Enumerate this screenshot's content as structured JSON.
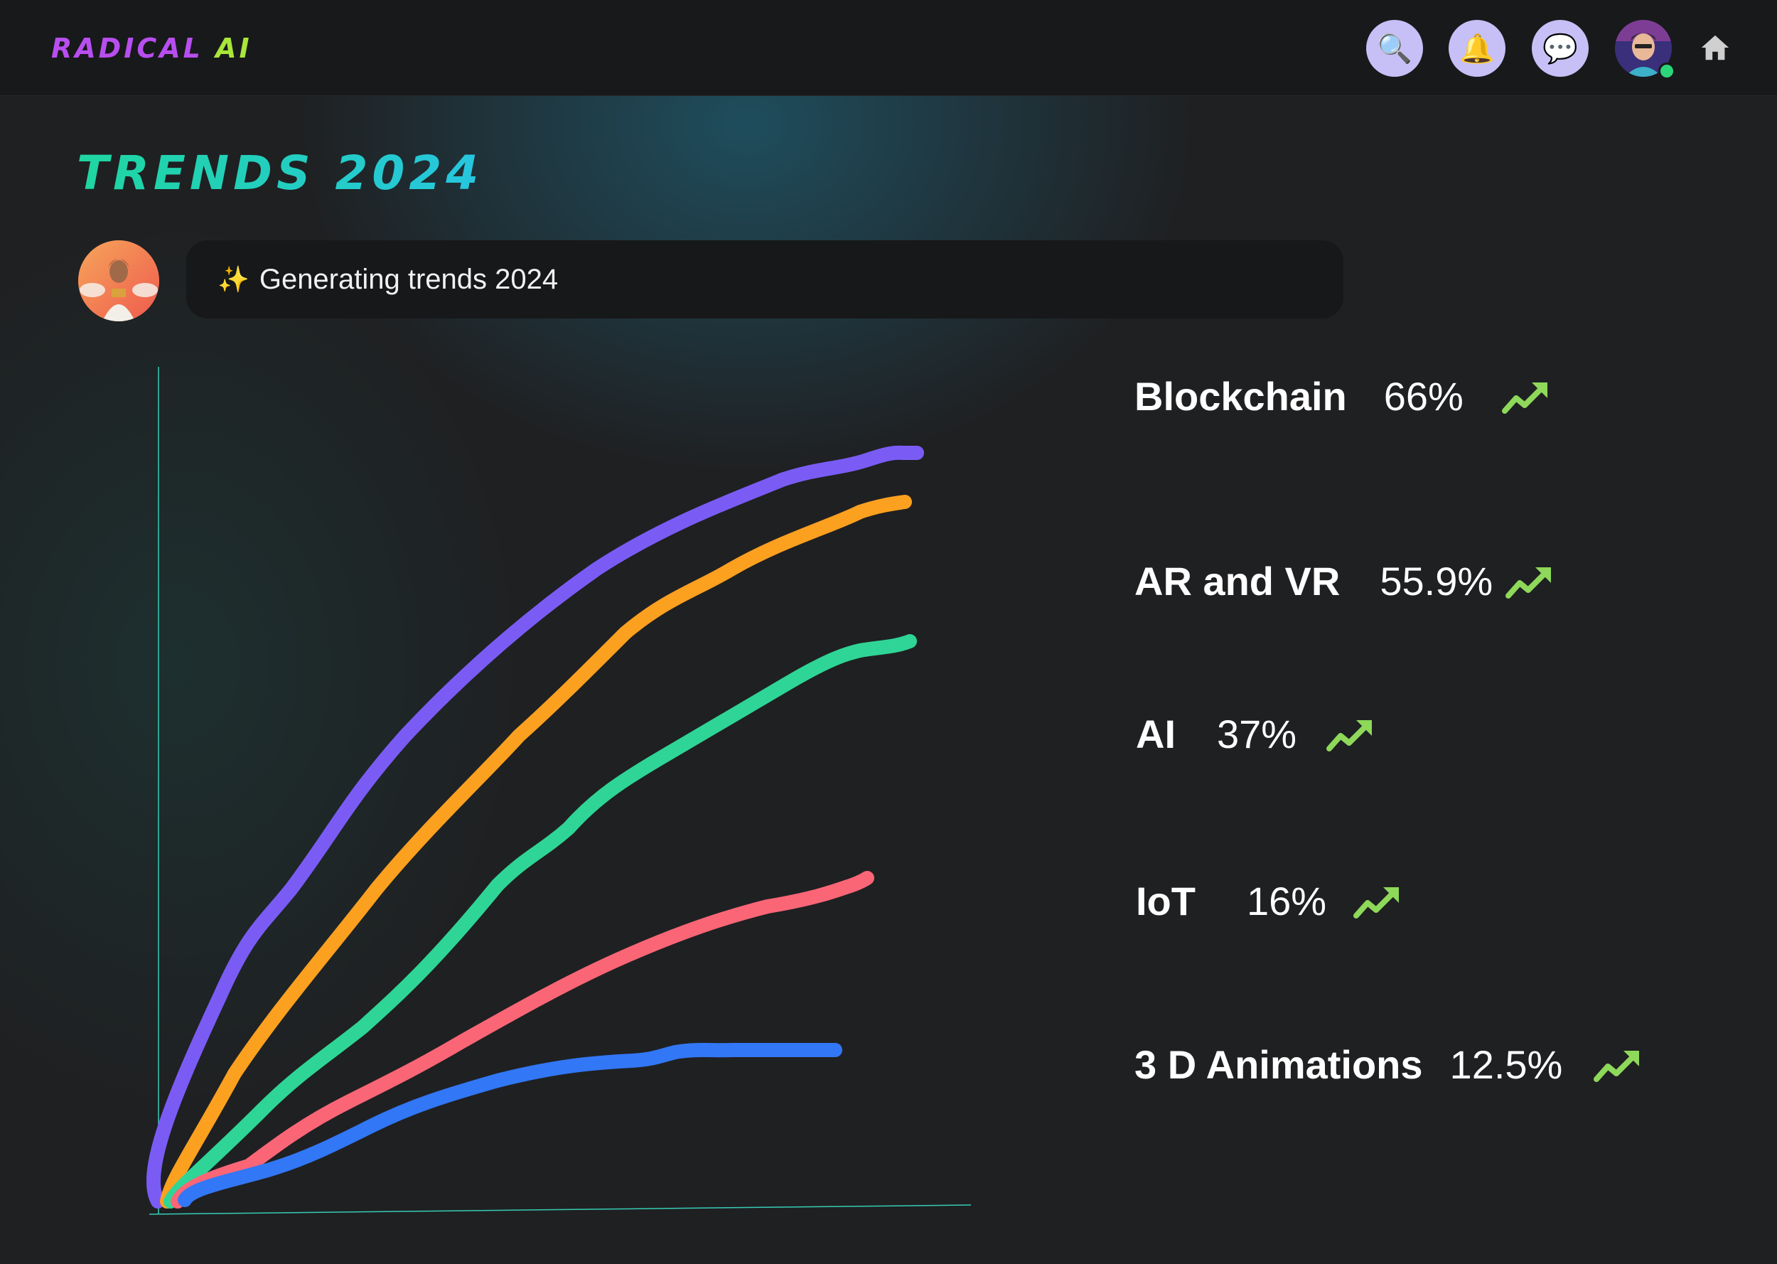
{
  "app": {
    "logo_part1": "RADICAL",
    "logo_part2": "AI",
    "title": "TRENDS 2024"
  },
  "nav": {
    "search_icon": "🔍",
    "bell_icon": "🔔",
    "chat_icon": "💬"
  },
  "prompt": {
    "sparkle": "✨",
    "text": "Generating trends 2024"
  },
  "colors": {
    "blockchain": "#7a5cf5",
    "ar_vr": "#fca020",
    "ai": "#2fd596",
    "iot": "#fb6676",
    "animations": "#3277f5",
    "trend_icon": "#8ed85a",
    "axis": "#36cdb5"
  },
  "chart_data": {
    "type": "line",
    "title": "TRENDS 2024",
    "series": [
      {
        "name": "Blockchain",
        "value": 66,
        "label": "66%"
      },
      {
        "name": "AR and VR",
        "value": 55.9,
        "label": "55.9%"
      },
      {
        "name": "AI",
        "value": 37,
        "label": "37%"
      },
      {
        "name": "IoT",
        "value": 16,
        "label": "16%"
      },
      {
        "name": "3 D Animations",
        "value": 12.5,
        "label": "12.5%"
      }
    ]
  },
  "legend": [
    {
      "name": "Blockchain",
      "value": "66%"
    },
    {
      "name": "AR and VR",
      "value": "55.9%"
    },
    {
      "name": "AI",
      "value": "37%"
    },
    {
      "name": "IoT",
      "value": "16%"
    },
    {
      "name": "3 D Animations",
      "value": "12.5%"
    }
  ]
}
